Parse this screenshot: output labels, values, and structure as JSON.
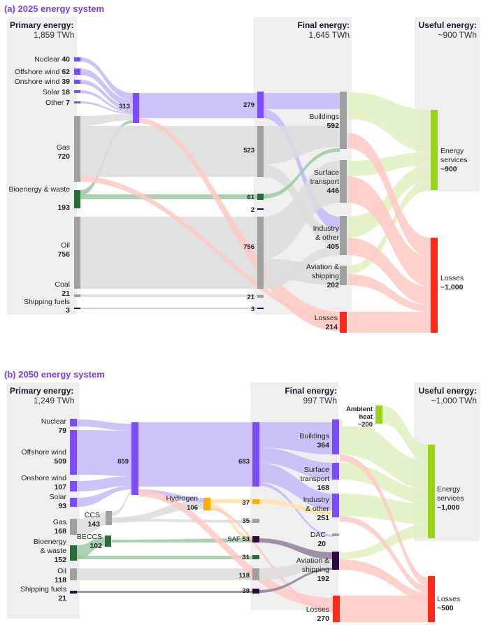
{
  "colors": {
    "purple": "#7b4dff",
    "purple_flow": "#c6b8f7",
    "gray_node": "#a0a0a0",
    "gray_flow": "#dcdcdc",
    "panel_bg": "#efefef",
    "green_dark": "#2e6b3c",
    "green_flow": "#9cc9a4",
    "lime": "#9bd21b",
    "lime_flow": "#dff0c0",
    "red": "#ff2a1a",
    "red_flow": "#ffc9c4",
    "orange": "#ffae00",
    "orange_flow": "#ffe2a6",
    "dark_purple": "#2a0a40",
    "dark_flow": "#8f7f9a",
    "title": "#7b3fe4"
  },
  "panel_a": {
    "title": "(a) 2025 energy system",
    "primary_header": "Primary energy:",
    "primary_total": "1,859 TWh",
    "final_header": "Final energy:",
    "final_total": "1,645 TWh",
    "useful_header": "Useful energy:",
    "useful_total": "~900 TWh",
    "primary_nodes": [
      {
        "label": "Nuclear",
        "value": "40"
      },
      {
        "label": "Offshore wind",
        "value": "62"
      },
      {
        "label": "Onshore wind",
        "value": "39"
      },
      {
        "label": "Solar",
        "value": "18"
      },
      {
        "label": "Other",
        "value": "7"
      },
      {
        "label": "Gas",
        "value": "720"
      },
      {
        "label": "Bioenergy & waste",
        "value": "193"
      },
      {
        "label": "Oil",
        "value": "756"
      },
      {
        "label": "Coal",
        "value": "21"
      },
      {
        "label": "Shipping fuels",
        "value": "3"
      }
    ],
    "intermediate": {
      "electricity_in": "313",
      "electricity_out": "279",
      "gas": "523",
      "bio": "61",
      "other": "2",
      "oil": "756",
      "coal": "21",
      "shipping": "3"
    },
    "final_nodes": [
      {
        "label": "Buildings",
        "value": "592"
      },
      {
        "label": "Surface transport",
        "value": "446"
      },
      {
        "label": "Industry & other",
        "value": "405"
      },
      {
        "label": "Aviation & shipping",
        "value": "202"
      },
      {
        "label": "Losses",
        "value": "214"
      }
    ],
    "useful_nodes": [
      {
        "label": "Energy services",
        "value": "~900"
      },
      {
        "label": "Losses",
        "value": "~1,000"
      }
    ]
  },
  "panel_b": {
    "title": "(b) 2050 energy system",
    "primary_header": "Primary energy:",
    "primary_total": "1,249 TWh",
    "final_header": "Final energy:",
    "final_total": "997 TWh",
    "useful_header": "Useful energy:",
    "useful_total": "~1,000 TWh",
    "primary_nodes": [
      {
        "label": "Nuclear",
        "value": "79"
      },
      {
        "label": "Offshore wind",
        "value": "509"
      },
      {
        "label": "Onshore wind",
        "value": "107"
      },
      {
        "label": "Solar",
        "value": "93"
      },
      {
        "label": "Gas",
        "value": "168"
      },
      {
        "label": "Bioenergy & waste",
        "value": "152"
      },
      {
        "label": "Oil",
        "value": "118"
      },
      {
        "label": "Shipping fuels",
        "value": "21"
      }
    ],
    "ccs": {
      "label": "CCS",
      "value": "143"
    },
    "beccs": {
      "label": "BECCS",
      "value": "102"
    },
    "hydrogen": {
      "label": "Hydrogen",
      "value": "106"
    },
    "saf": {
      "label": "SAF",
      "value": "53"
    },
    "intermediate": {
      "electricity_in": "859",
      "electricity_out": "683",
      "h2": "37",
      "gas": "35",
      "bio": "31",
      "oil": "118",
      "ship": "39"
    },
    "final_nodes": [
      {
        "label": "Buildings",
        "value": "364"
      },
      {
        "label": "Surface transport",
        "value": "168"
      },
      {
        "label": "Industry & other",
        "value": "251"
      },
      {
        "label": "DAC",
        "value": "20"
      },
      {
        "label": "Aviation & shipping",
        "value": "192"
      },
      {
        "label": "Losses",
        "value": "270"
      }
    ],
    "ambient": {
      "label": "Ambient heat",
      "value": "~200"
    },
    "useful_nodes": [
      {
        "label": "Energy services",
        "value": "~1,000"
      },
      {
        "label": "Losses",
        "value": "~500"
      }
    ]
  }
}
